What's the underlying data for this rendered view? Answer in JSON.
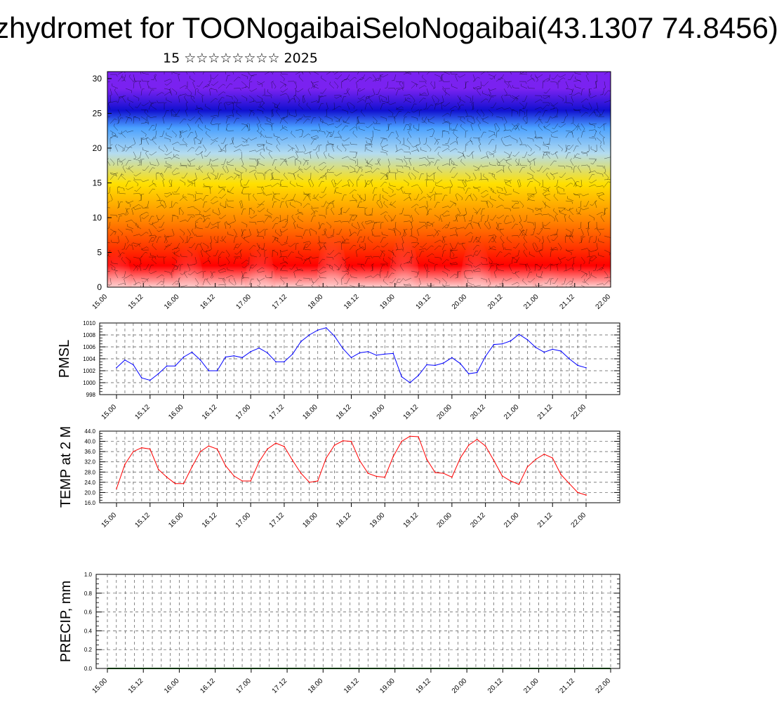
{
  "title": "zhydromet for TOONogaibaiSeloNogaibai(43.1307 74.8456)",
  "subtitle": "15 ☆☆☆☆☆☆☆☆ 2025",
  "time_ticks": [
    "15.00",
    "15.12",
    "16.00",
    "16.12",
    "17.00",
    "17.12",
    "18.00",
    "18.12",
    "19.00",
    "19.12",
    "20.00",
    "20.12",
    "21.00",
    "21.12",
    "22.00"
  ],
  "chart_data": [
    {
      "type": "heatmap",
      "title": "zhydromet for TOONogaibaiSeloNogaibai(43.1307 74.8456)",
      "subtitle": "15 ☆☆☆☆☆☆☆☆ 2025",
      "x_ticks": [
        "15.00",
        "15.12",
        "16.00",
        "16.12",
        "17.00",
        "17.12",
        "18.00",
        "18.12",
        "19.00",
        "19.12",
        "20.00",
        "20.12",
        "21.00",
        "21.12",
        "22.00"
      ],
      "y_ticks": [
        "0",
        "5",
        "10",
        "15",
        "20",
        "25",
        "30"
      ],
      "ylim": [
        0,
        31
      ],
      "colormap": [
        "#ffd0d0",
        "#ff0000",
        "#ff8000",
        "#ffe000",
        "#b4dcf0",
        "#4aa0ff",
        "#1010d0",
        "#7a22f0"
      ],
      "overlay": "wind barbs",
      "hot_spots": [
        {
          "x": 15.125,
          "peak": 3.6
        },
        {
          "x": 16.125,
          "peak": 4.0
        },
        {
          "x": 17.125,
          "peak": 4.0
        },
        {
          "x": 18.125,
          "peak": 5.2
        },
        {
          "x": 19.125,
          "peak": 5.0
        },
        {
          "x": 20.125,
          "peak": 4.5
        },
        {
          "x": 21.125,
          "peak": 2.0
        }
      ]
    },
    {
      "type": "line",
      "ylabel": "PMSL",
      "y_ticks": [
        "998",
        "1000",
        "1002",
        "1004",
        "1006",
        "1008",
        "1010"
      ],
      "ylim": [
        998,
        1010
      ],
      "color": "#0000ff",
      "x_ticks": [
        "15.00",
        "15.12",
        "16.00",
        "16.12",
        "17.00",
        "17.12",
        "18.00",
        "18.12",
        "19.00",
        "19.12",
        "20.00",
        "20.12",
        "21.00",
        "21.12",
        "22.00"
      ],
      "x": [
        15.0,
        15.125,
        15.25,
        15.375,
        15.5,
        15.625,
        15.75,
        15.875,
        16.0,
        16.125,
        16.25,
        16.375,
        16.5,
        16.625,
        16.75,
        16.875,
        17.0,
        17.125,
        17.25,
        17.375,
        17.5,
        17.625,
        17.75,
        17.875,
        18.0,
        18.125,
        18.25,
        18.375,
        18.5,
        18.625,
        18.75,
        18.875,
        19.0,
        19.125,
        19.25,
        19.375,
        19.5,
        19.625,
        19.75,
        19.875,
        20.0,
        20.125,
        20.25,
        20.375,
        20.5,
        20.625,
        20.75,
        20.875,
        21.0,
        21.125,
        21.25,
        21.375,
        21.5,
        21.625,
        21.75,
        21.875,
        22.0
      ],
      "values": [
        1002.5,
        1003.8,
        1003.0,
        1000.8,
        1000.4,
        1001.5,
        1002.8,
        1002.8,
        1004.3,
        1005.1,
        1003.8,
        1002.0,
        1002.0,
        1004.3,
        1004.5,
        1004.2,
        1005.2,
        1005.8,
        1005.0,
        1003.5,
        1003.5,
        1004.8,
        1006.9,
        1008.0,
        1008.8,
        1009.2,
        1007.8,
        1005.7,
        1004.2,
        1005.0,
        1005.2,
        1004.6,
        1004.8,
        1004.9,
        1001.0,
        1000.0,
        1001.2,
        1003.0,
        1002.9,
        1003.3,
        1004.2,
        1003.2,
        1001.5,
        1001.7,
        1004.4,
        1006.4,
        1006.5,
        1007.0,
        1008.1,
        1007.2,
        1005.9,
        1005.1,
        1005.6,
        1005.3,
        1004.0,
        1002.9,
        1002.5
      ]
    },
    {
      "type": "line",
      "ylabel": "TEMP at 2 M",
      "y_ticks": [
        "16.0",
        "20.0",
        "24.0",
        "28.0",
        "32.0",
        "36.0",
        "40.0",
        "44.0"
      ],
      "ylim": [
        16,
        44
      ],
      "color": "#ff0000",
      "x_ticks": [
        "15.00",
        "15.12",
        "16.00",
        "16.12",
        "17.00",
        "17.12",
        "18.00",
        "18.12",
        "19.00",
        "19.12",
        "20.00",
        "20.12",
        "21.00",
        "21.12",
        "22.00"
      ],
      "x": [
        15.0,
        15.125,
        15.25,
        15.375,
        15.5,
        15.625,
        15.75,
        15.875,
        16.0,
        16.125,
        16.25,
        16.375,
        16.5,
        16.625,
        16.75,
        16.875,
        17.0,
        17.125,
        17.25,
        17.375,
        17.5,
        17.625,
        17.75,
        17.875,
        18.0,
        18.125,
        18.25,
        18.375,
        18.5,
        18.625,
        18.75,
        18.875,
        19.0,
        19.125,
        19.25,
        19.375,
        19.5,
        19.625,
        19.75,
        19.875,
        20.0,
        20.125,
        20.25,
        20.375,
        20.5,
        20.625,
        20.75,
        20.875,
        21.0,
        21.125,
        21.25,
        21.375,
        21.5,
        21.625,
        21.75,
        21.875,
        22.0
      ],
      "values": [
        21.5,
        31.0,
        36.0,
        37.5,
        37.0,
        29.0,
        26.0,
        23.5,
        23.5,
        30.0,
        36.0,
        38.2,
        37.0,
        30.5,
        26.5,
        24.5,
        24.5,
        32.0,
        37.0,
        39.3,
        38.0,
        32.5,
        27.5,
        24.0,
        24.5,
        33.5,
        38.5,
        40.2,
        40.0,
        32.5,
        27.5,
        26.3,
        26.0,
        34.0,
        40.0,
        42.0,
        41.8,
        33.0,
        27.8,
        27.5,
        26.0,
        33.5,
        38.5,
        40.8,
        38.2,
        32.5,
        26.5,
        24.5,
        23.2,
        30.0,
        33.0,
        35.0,
        33.5,
        27.0,
        23.5,
        20.0,
        19.0
      ]
    },
    {
      "type": "line",
      "ylabel": "PRECIP, mm",
      "y_ticks": [
        "0.0",
        "0.2",
        "0.4",
        "0.6",
        "0.8",
        "1.0"
      ],
      "ylim": [
        0,
        1
      ],
      "color": "#003300",
      "x_ticks": [
        "15.00",
        "15.12",
        "16.00",
        "16.12",
        "17.00",
        "17.12",
        "18.00",
        "18.12",
        "19.00",
        "19.12",
        "20.00",
        "20.12",
        "21.00",
        "21.12",
        "22.00"
      ],
      "x": [
        15.0,
        22.0
      ],
      "values": [
        0.0,
        0.0
      ]
    }
  ]
}
